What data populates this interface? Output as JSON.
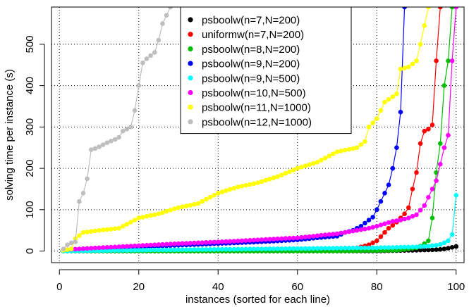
{
  "chart_data": {
    "type": "line",
    "title": "",
    "xlabel": "instances (sorted for each line)",
    "ylabel": "solving time per instance (s)",
    "xlim": [
      -2,
      102
    ],
    "ylim": [
      -28,
      590
    ],
    "x_ticks": [
      0,
      20,
      40,
      60,
      80,
      100
    ],
    "y_ticks": [
      0,
      100,
      200,
      300,
      400,
      500
    ],
    "grid": true,
    "legend_position": "top-center",
    "series": [
      {
        "name": "psboolw(n=7,N=200)",
        "color": "#000000",
        "points": [
          [
            1,
            0
          ],
          [
            10,
            0
          ],
          [
            20,
            0
          ],
          [
            30,
            0
          ],
          [
            40,
            0
          ],
          [
            50,
            0
          ],
          [
            60,
            0
          ],
          [
            70,
            0
          ],
          [
            80,
            0
          ],
          [
            85,
            1
          ],
          [
            90,
            2
          ],
          [
            94,
            3
          ],
          [
            96,
            4
          ],
          [
            97,
            5
          ],
          [
            98,
            7
          ],
          [
            99,
            9
          ],
          [
            100,
            11
          ]
        ]
      },
      {
        "name": "uniformw(n=7,N=200)",
        "color": "#ff0000",
        "points": [
          [
            1,
            1
          ],
          [
            10,
            1
          ],
          [
            20,
            1
          ],
          [
            30,
            1
          ],
          [
            40,
            1
          ],
          [
            50,
            1
          ],
          [
            60,
            2
          ],
          [
            65,
            3
          ],
          [
            70,
            3
          ],
          [
            72,
            4
          ],
          [
            74,
            6
          ],
          [
            76,
            10
          ],
          [
            78,
            15
          ],
          [
            80,
            25
          ],
          [
            81,
            35
          ],
          [
            82,
            45
          ],
          [
            83,
            55
          ],
          [
            84,
            62
          ],
          [
            85,
            70
          ],
          [
            86,
            80
          ],
          [
            87,
            90
          ],
          [
            88,
            105
          ],
          [
            89,
            150
          ],
          [
            90,
            190
          ],
          [
            91,
            260
          ],
          [
            92,
            290
          ],
          [
            93,
            295
          ],
          [
            94,
            305
          ],
          [
            95,
            460
          ],
          [
            96,
            590
          ]
        ]
      },
      {
        "name": "psboolw(n=8,N=200)",
        "color": "#00c000",
        "points": [
          [
            1,
            0
          ],
          [
            10,
            0
          ],
          [
            20,
            0
          ],
          [
            30,
            0
          ],
          [
            40,
            0
          ],
          [
            50,
            0
          ],
          [
            60,
            0
          ],
          [
            70,
            0
          ],
          [
            80,
            1
          ],
          [
            85,
            2
          ],
          [
            88,
            5
          ],
          [
            90,
            8
          ],
          [
            91,
            12
          ],
          [
            92,
            18
          ],
          [
            93,
            25
          ],
          [
            94,
            80
          ],
          [
            95,
            190
          ],
          [
            96,
            260
          ],
          [
            97,
            400
          ],
          [
            98,
            460
          ],
          [
            99,
            590
          ]
        ]
      },
      {
        "name": "psboolw(n=9,N=200)",
        "color": "#0000ff",
        "points": [
          [
            1,
            2
          ],
          [
            10,
            6
          ],
          [
            20,
            10
          ],
          [
            30,
            14
          ],
          [
            40,
            18
          ],
          [
            50,
            22
          ],
          [
            60,
            27
          ],
          [
            65,
            32
          ],
          [
            70,
            36
          ],
          [
            72,
            45
          ],
          [
            74,
            50
          ],
          [
            76,
            60
          ],
          [
            78,
            75
          ],
          [
            79,
            82
          ],
          [
            80,
            100
          ],
          [
            81,
            120
          ],
          [
            82,
            140
          ],
          [
            83,
            160
          ],
          [
            84,
            200
          ],
          [
            85,
            250
          ],
          [
            86,
            336
          ],
          [
            87,
            590
          ]
        ]
      },
      {
        "name": "psboolw(n=9,N=500)",
        "color": "#00ffff",
        "points": [
          [
            1,
            0
          ],
          [
            10,
            1
          ],
          [
            20,
            2
          ],
          [
            30,
            3
          ],
          [
            40,
            4
          ],
          [
            50,
            5
          ],
          [
            60,
            6
          ],
          [
            70,
            7
          ],
          [
            80,
            8
          ],
          [
            85,
            9
          ],
          [
            90,
            10
          ],
          [
            93,
            12
          ],
          [
            95,
            14
          ],
          [
            96,
            16
          ],
          [
            97,
            20
          ],
          [
            98,
            25
          ],
          [
            99,
            40
          ],
          [
            100,
            135
          ]
        ]
      },
      {
        "name": "psboolw(n=10,N=500)",
        "color": "#ff00ff",
        "points": [
          [
            1,
            3
          ],
          [
            10,
            8
          ],
          [
            20,
            13
          ],
          [
            30,
            18
          ],
          [
            40,
            22
          ],
          [
            50,
            27
          ],
          [
            60,
            32
          ],
          [
            70,
            42
          ],
          [
            75,
            50
          ],
          [
            78,
            55
          ],
          [
            80,
            60
          ],
          [
            82,
            66
          ],
          [
            84,
            72
          ],
          [
            86,
            75
          ],
          [
            88,
            80
          ],
          [
            90,
            88
          ],
          [
            92,
            110
          ],
          [
            93,
            130
          ],
          [
            94,
            150
          ],
          [
            95,
            170
          ],
          [
            96,
            210
          ],
          [
            97,
            250
          ],
          [
            98,
            280
          ],
          [
            99,
            460
          ],
          [
            100,
            590
          ]
        ]
      },
      {
        "name": "psboolw(n=11,N=1000)",
        "color": "#ffff00",
        "points": [
          [
            1,
            2
          ],
          [
            3,
            5
          ],
          [
            4,
            30
          ],
          [
            6,
            45
          ],
          [
            10,
            50
          ],
          [
            15,
            55
          ],
          [
            18,
            70
          ],
          [
            20,
            80
          ],
          [
            25,
            90
          ],
          [
            30,
            105
          ],
          [
            35,
            115
          ],
          [
            40,
            140
          ],
          [
            45,
            155
          ],
          [
            50,
            165
          ],
          [
            55,
            180
          ],
          [
            60,
            200
          ],
          [
            65,
            215
          ],
          [
            70,
            240
          ],
          [
            75,
            250
          ],
          [
            77,
            265
          ],
          [
            78,
            300
          ],
          [
            80,
            320
          ],
          [
            82,
            360
          ],
          [
            85,
            380
          ],
          [
            86,
            440
          ],
          [
            88,
            445
          ],
          [
            90,
            460
          ],
          [
            91,
            500
          ],
          [
            93,
            590
          ]
        ]
      },
      {
        "name": "psboolw(n=12,N=1000)",
        "color": "#bebebe",
        "points": [
          [
            1,
            5
          ],
          [
            2,
            15
          ],
          [
            3,
            20
          ],
          [
            4,
            22
          ],
          [
            5,
            120
          ],
          [
            6,
            140
          ],
          [
            7,
            175
          ],
          [
            8,
            245
          ],
          [
            9,
            248
          ],
          [
            10,
            252
          ],
          [
            12,
            262
          ],
          [
            14,
            270
          ],
          [
            15,
            275
          ],
          [
            16,
            290
          ],
          [
            18,
            300
          ],
          [
            19,
            340
          ],
          [
            20,
            400
          ],
          [
            21,
            455
          ],
          [
            22,
            465
          ],
          [
            24,
            480
          ],
          [
            25,
            510
          ],
          [
            26,
            550
          ],
          [
            28,
            590
          ]
        ]
      }
    ]
  }
}
